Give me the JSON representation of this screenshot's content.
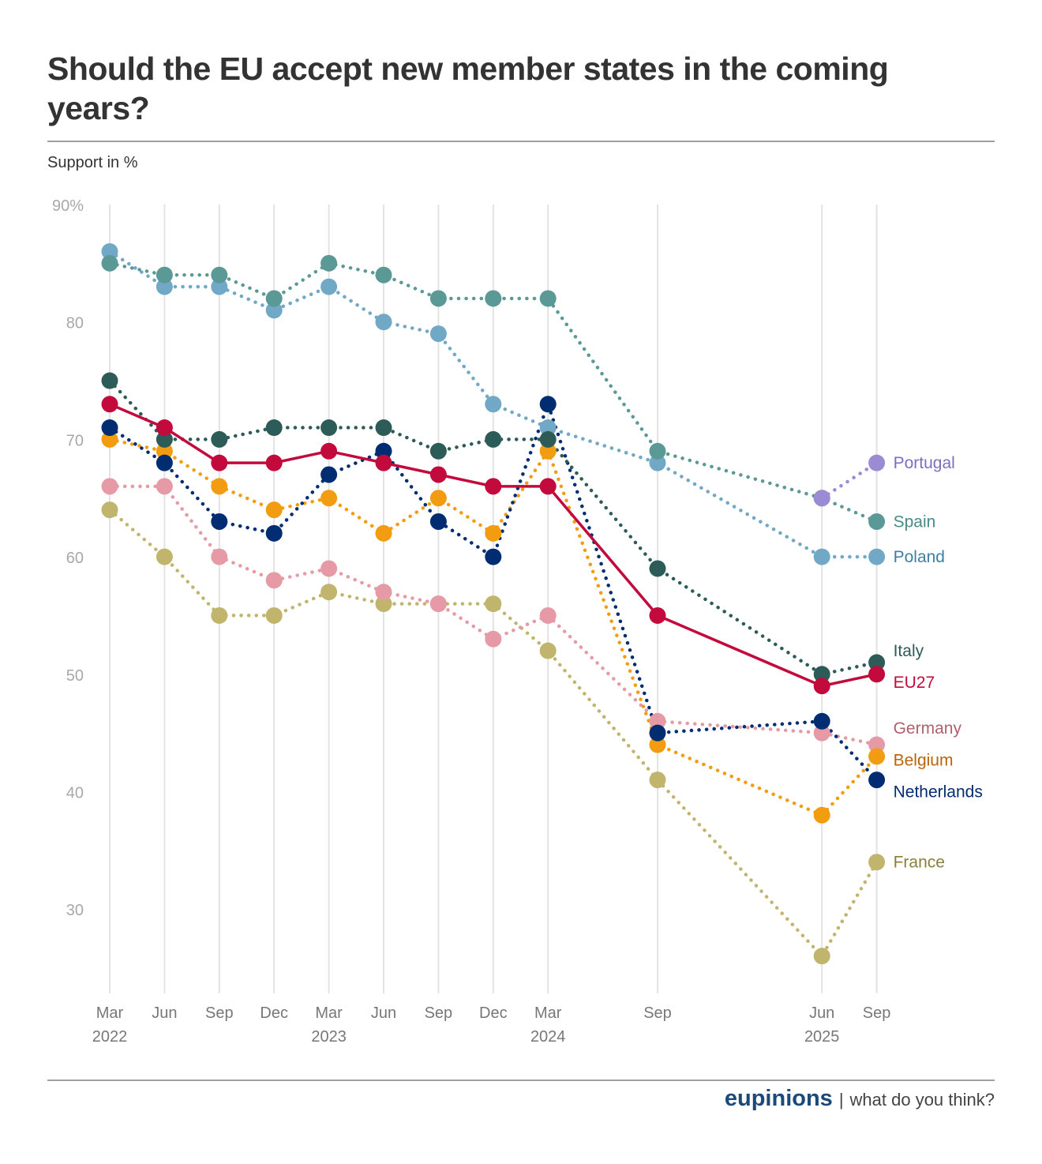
{
  "header": {
    "title": "Should the EU accept new member states in the coming years?",
    "subtitle": "Support in %"
  },
  "footer": {
    "brand": "eupinions",
    "separator": "|",
    "tagline": "what do you think?"
  },
  "chart_data": {
    "type": "line",
    "title": "Should the EU accept new member states in the coming years?",
    "ylabel": "Support in %",
    "xlabel": "",
    "ylim": [
      23,
      90
    ],
    "yticks": [
      90,
      80,
      70,
      60,
      50,
      40,
      30
    ],
    "ytick_labels": [
      "90%",
      "80",
      "70",
      "60",
      "50",
      "40",
      "30"
    ],
    "grid": "vertical lines at each survey date",
    "legend": "direct labels at right end",
    "x": [
      "Mar 2022",
      "Jun 2022",
      "Sep 2022",
      "Dec 2022",
      "Mar 2023",
      "Jun 2023",
      "Sep 2023",
      "Dec 2023",
      "Mar 2024",
      "Sep 2024",
      "Jun 2025",
      "Sep 2025"
    ],
    "x_quarter_index": [
      0,
      1,
      2,
      3,
      4,
      5,
      6,
      7,
      8,
      10,
      13,
      14
    ],
    "x_tick_labels": [
      {
        "month": "Mar",
        "year": "2022"
      },
      {
        "month": "Jun",
        "year": ""
      },
      {
        "month": "Sep",
        "year": ""
      },
      {
        "month": "Dec",
        "year": ""
      },
      {
        "month": "Mar",
        "year": "2023"
      },
      {
        "month": "Jun",
        "year": ""
      },
      {
        "month": "Sep",
        "year": ""
      },
      {
        "month": "Dec",
        "year": ""
      },
      {
        "month": "Mar",
        "year": "2024"
      },
      {
        "month": "Sep",
        "year": ""
      },
      {
        "month": "Jun",
        "year": "2025"
      },
      {
        "month": "Sep",
        "year": ""
      }
    ],
    "series": [
      {
        "name": "France",
        "color": "#c1b56e",
        "label_color": "#8a7f3a",
        "style": "dotted",
        "values": [
          64,
          60,
          55,
          55,
          57,
          56,
          56,
          56,
          52,
          41,
          26,
          34
        ]
      },
      {
        "name": "Germany",
        "color": "#e59aa6",
        "label_color": "#b0606e",
        "style": "dotted",
        "values": [
          66,
          66,
          60,
          58,
          59,
          57,
          56,
          53,
          55,
          46,
          45,
          44
        ]
      },
      {
        "name": "Belgium",
        "color": "#f29c12",
        "label_color": "#b8640a",
        "style": "dotted",
        "values": [
          70,
          69,
          66,
          64,
          65,
          62,
          65,
          62,
          69,
          44,
          38,
          43
        ]
      },
      {
        "name": "Netherlands",
        "color": "#002d72",
        "label_color": "#002d72",
        "style": "dotted",
        "values": [
          71,
          68,
          63,
          62,
          67,
          69,
          63,
          60,
          73,
          45,
          46,
          41
        ]
      },
      {
        "name": "Poland",
        "color": "#70a8c6",
        "label_color": "#3f7f9f",
        "style": "dotted",
        "values": [
          86,
          83,
          83,
          81,
          83,
          80,
          79,
          73,
          71,
          68,
          60,
          60
        ]
      },
      {
        "name": "Spain",
        "color": "#5a9996",
        "label_color": "#4a8a87",
        "style": "dotted",
        "values": [
          85,
          84,
          84,
          82,
          85,
          84,
          82,
          82,
          82,
          69,
          65,
          63
        ]
      },
      {
        "name": "Portugal",
        "color": "#9b8bd4",
        "label_color": "#7d6ec0",
        "style": "dotted",
        "values": [
          null,
          null,
          null,
          null,
          null,
          null,
          null,
          null,
          null,
          null,
          65,
          68
        ]
      },
      {
        "name": "Italy",
        "color": "#2d5c58",
        "label_color": "#2d5c58",
        "style": "dotted",
        "values": [
          75,
          70,
          70,
          71,
          71,
          71,
          69,
          70,
          70,
          59,
          50,
          51
        ]
      },
      {
        "name": "EU27",
        "color": "#c20a3c",
        "label_color": "#c20a3c",
        "style": "solid",
        "values": [
          73,
          71,
          68,
          68,
          69,
          68,
          67,
          66,
          66,
          55,
          49,
          50
        ]
      }
    ]
  }
}
